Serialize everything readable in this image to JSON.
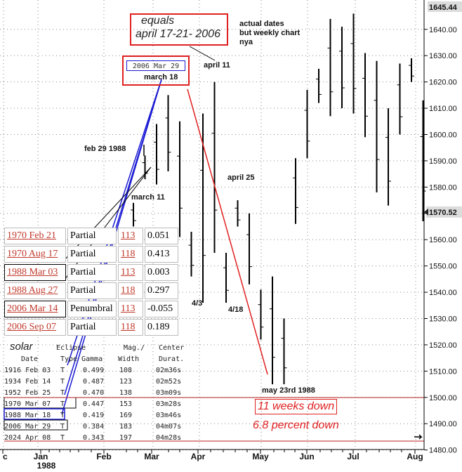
{
  "chart_data": {
    "type": "ohlc",
    "price_axis": {
      "ticks": [
        1640.0,
        1630.0,
        1620.0,
        1610.0,
        1600.0,
        1590.0,
        1580.0,
        1570.0,
        1560.0,
        1550.0,
        1540.0,
        1530.0,
        1520.0,
        1510.0,
        1500.0,
        1490.0,
        1480.0
      ],
      "ylim": [
        1477.5,
        1648.5
      ],
      "top_label": "1645.44",
      "last_label": "1570.52"
    },
    "time_axis": {
      "labels": [
        "c",
        "Jan",
        "Feb",
        "Mar",
        "Apr",
        "May",
        "Jun",
        "Jul",
        "Aug"
      ],
      "sublabel": "1988"
    },
    "bars": [
      {
        "week": 1,
        "low": 1565,
        "high": 1574
      },
      {
        "week": 2,
        "low": 1583,
        "high": 1592
      },
      {
        "week": 3,
        "low": 1581,
        "high": 1604
      },
      {
        "week": 4,
        "low": 1586,
        "high": 1615
      },
      {
        "week": 5,
        "low": 1561,
        "high": 1605
      },
      {
        "week": 6,
        "low": 1546,
        "high": 1563
      },
      {
        "week": 7,
        "low": 1536,
        "high": 1608
      },
      {
        "week": 8,
        "low": 1555,
        "high": 1620
      },
      {
        "week": 9,
        "low": 1536,
        "high": 1555
      },
      {
        "week": 10,
        "low": 1565,
        "high": 1575
      },
      {
        "week": 11,
        "low": 1543,
        "high": 1570
      },
      {
        "week": 12,
        "low": 1522,
        "high": 1541
      },
      {
        "week": 13,
        "low": 1505,
        "high": 1546
      },
      {
        "week": 14,
        "low": 1505,
        "high": 1530
      },
      {
        "week": 15,
        "low": 1566,
        "high": 1591
      },
      {
        "week": 16,
        "low": 1591,
        "high": 1617
      },
      {
        "week": 17,
        "low": 1612,
        "high": 1625
      },
      {
        "week": 18,
        "low": 1607,
        "high": 1644
      },
      {
        "week": 19,
        "low": 1610,
        "high": 1641
      },
      {
        "week": 20,
        "low": 1608,
        "high": 1646
      },
      {
        "week": 21,
        "low": 1599,
        "high": 1631
      },
      {
        "week": 22,
        "low": 1578,
        "high": 1628
      },
      {
        "week": 23,
        "low": 1573,
        "high": 1610
      },
      {
        "week": 24,
        "low": 1600,
        "high": 1627
      },
      {
        "week": 25,
        "low": 1620,
        "high": 1629
      },
      {
        "week": 26,
        "low": 1567,
        "high": 1613
      }
    ]
  },
  "annotations": {
    "equals_line1": "equals",
    "equals_line2": "april 17-21- 2006",
    "actual_note": "actual dates\nbut weekly chart\nnya",
    "date_box": "2006 Mar 29",
    "march18": "march 18",
    "april11": "april 11",
    "feb29": "feb 29 1988",
    "march11": "march 11",
    "april25": "april 25",
    "l43": "4/3",
    "l418": "4/18",
    "may23": "may 23rd 1988",
    "weeks_down": "11 weeks down",
    "percent_down": "6.8 percent down"
  },
  "lunar_table": [
    {
      "date": "1970 Feb 21",
      "type": "Partial",
      "saros": "113",
      "gamma": "0.051"
    },
    {
      "date": "1970 Aug 17",
      "type": "Partial",
      "saros": "118",
      "gamma": "0.413"
    },
    {
      "date": "1988 Mar 03",
      "type": "Partial",
      "saros": "113",
      "gamma": "0.003"
    },
    {
      "date": "1988 Aug 27",
      "type": "Partial",
      "saros": "118",
      "gamma": "0.297"
    },
    {
      "date": "2006 Mar 14",
      "type": "Penumbral",
      "saros": "113",
      "gamma": "-0.055"
    },
    {
      "date": "2006 Sep 07",
      "type": "Partial",
      "saros": "118",
      "gamma": "0.189"
    }
  ],
  "solar": {
    "label": "solar",
    "headers_top": [
      "Eclipse",
      "Mag./",
      "Center"
    ],
    "headers_bottom": [
      "Date",
      "Type",
      "Gamma",
      "Width",
      "Durat."
    ],
    "rows": [
      [
        "1916 Feb 03",
        "T",
        "0.499",
        "108",
        "02m36s"
      ],
      [
        "1934 Feb 14",
        "T",
        "0.487",
        "123",
        "02m52s"
      ],
      [
        "1952 Feb 25",
        "T",
        "0.470",
        "138",
        "03m09s"
      ],
      [
        "1970 Mar 07",
        "T",
        "0.447",
        "153",
        "03m28s"
      ],
      [
        "1988 Mar 18",
        "T",
        "0.419",
        "169",
        "03m46s"
      ],
      [
        "2006 Mar 29",
        "T",
        "0.384",
        "183",
        "04m07s"
      ],
      [
        "2024 Apr 08",
        "T",
        "0.343",
        "197",
        "04m28s"
      ]
    ]
  },
  "colors": {
    "red": "#e02020",
    "blue": "#1a1ad4",
    "text_red": "#c0392b"
  }
}
